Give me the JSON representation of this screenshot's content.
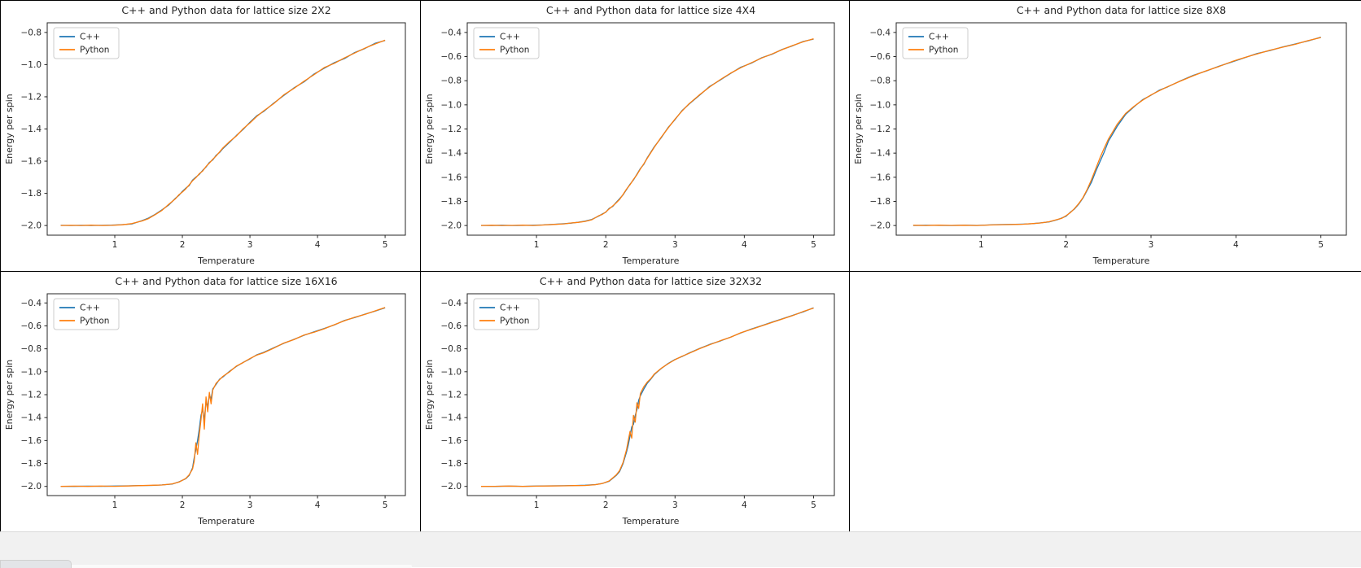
{
  "window": {
    "background": "#ffffff",
    "grid_line_color": "#000000",
    "bottom_bar_color": "#f1f1f1"
  },
  "chart_data": [
    {
      "type": "line",
      "title": "C++ and Python data for lattice size 2X2",
      "xlabel": "Temperature",
      "ylabel": "Energy per spin",
      "legend_position": "upper left",
      "grid": false,
      "xlim": [
        0,
        5.3
      ],
      "ylim": [
        -2.06,
        -0.74
      ],
      "x_ticks": [
        1,
        2,
        3,
        4,
        5
      ],
      "y_ticks": [
        -0.8,
        -1.0,
        -1.2,
        -1.4,
        -1.6,
        -1.8,
        -2.0
      ],
      "x": [
        0.2,
        0.35,
        0.5,
        0.65,
        0.8,
        0.95,
        1.1,
        1.25,
        1.4,
        1.5,
        1.6,
        1.7,
        1.8,
        1.9,
        1.95,
        2.0,
        2.05,
        2.1,
        2.15,
        2.2,
        2.25,
        2.3,
        2.35,
        2.4,
        2.45,
        2.5,
        2.55,
        2.6,
        2.7,
        2.8,
        2.9,
        3.0,
        3.1,
        3.2,
        3.35,
        3.5,
        3.65,
        3.8,
        3.95,
        4.1,
        4.25,
        4.4,
        4.55,
        4.7,
        4.85,
        5.0
      ],
      "series": [
        {
          "name": "C++",
          "color": "#1f77b4",
          "y": [
            -1.999,
            -2.0,
            -1.999,
            -2.0,
            -1.999,
            -1.998,
            -1.995,
            -1.99,
            -1.97,
            -1.954,
            -1.93,
            -1.902,
            -1.872,
            -1.83,
            -1.812,
            -1.788,
            -1.768,
            -1.752,
            -1.718,
            -1.7,
            -1.682,
            -1.658,
            -1.636,
            -1.608,
            -1.592,
            -1.564,
            -1.546,
            -1.522,
            -1.482,
            -1.44,
            -1.402,
            -1.358,
            -1.318,
            -1.292,
            -1.24,
            -1.192,
            -1.145,
            -1.107,
            -1.058,
            -1.022,
            -0.988,
            -0.962,
            -0.925,
            -0.9,
            -0.868,
            -0.85
          ]
        },
        {
          "name": "Python",
          "color": "#ff7f0e",
          "y": [
            -2.0,
            -1.999,
            -2.0,
            -1.998,
            -2.0,
            -1.999,
            -1.996,
            -1.988,
            -1.972,
            -1.957,
            -1.932,
            -1.905,
            -1.868,
            -1.833,
            -1.808,
            -1.792,
            -1.772,
            -1.748,
            -1.722,
            -1.703,
            -1.678,
            -1.662,
            -1.633,
            -1.612,
            -1.588,
            -1.568,
            -1.543,
            -1.518,
            -1.478,
            -1.443,
            -1.398,
            -1.362,
            -1.322,
            -1.288,
            -1.243,
            -1.188,
            -1.148,
            -1.103,
            -1.062,
            -1.018,
            -0.992,
            -0.958,
            -0.928,
            -0.898,
            -0.872,
            -0.848
          ]
        }
      ]
    },
    {
      "type": "line",
      "title": "C++ and Python data for lattice size 4X4",
      "xlabel": "Temperature",
      "ylabel": "Energy per spin",
      "legend_position": "upper left",
      "grid": false,
      "xlim": [
        0,
        5.3
      ],
      "ylim": [
        -2.08,
        -0.32
      ],
      "x_ticks": [
        1,
        2,
        3,
        4,
        5
      ],
      "y_ticks": [
        -0.4,
        -0.6,
        -0.8,
        -1.0,
        -1.2,
        -1.4,
        -1.6,
        -1.8,
        -2.0
      ],
      "x": [
        0.2,
        0.35,
        0.5,
        0.65,
        0.8,
        0.95,
        1.1,
        1.25,
        1.4,
        1.5,
        1.6,
        1.7,
        1.8,
        1.9,
        1.95,
        2.0,
        2.05,
        2.1,
        2.15,
        2.2,
        2.25,
        2.3,
        2.35,
        2.4,
        2.45,
        2.5,
        2.55,
        2.6,
        2.7,
        2.8,
        2.9,
        3.0,
        3.1,
        3.2,
        3.35,
        3.5,
        3.65,
        3.8,
        3.95,
        4.1,
        4.25,
        4.4,
        4.55,
        4.7,
        4.85,
        5.0
      ],
      "series": [
        {
          "name": "C++",
          "color": "#1f77b4",
          "y": [
            -1.999,
            -2.0,
            -1.998,
            -2.0,
            -1.999,
            -1.998,
            -1.995,
            -1.99,
            -1.985,
            -1.98,
            -1.973,
            -1.964,
            -1.949,
            -1.921,
            -1.905,
            -1.89,
            -1.858,
            -1.842,
            -1.808,
            -1.778,
            -1.745,
            -1.702,
            -1.658,
            -1.622,
            -1.575,
            -1.528,
            -1.492,
            -1.438,
            -1.348,
            -1.272,
            -1.188,
            -1.122,
            -1.048,
            -0.995,
            -0.922,
            -0.848,
            -0.795,
            -0.74,
            -0.688,
            -0.655,
            -0.61,
            -0.58,
            -0.54,
            -0.51,
            -0.475,
            -0.455
          ]
        },
        {
          "name": "Python",
          "color": "#ff7f0e",
          "y": [
            -2.0,
            -1.998,
            -2.0,
            -1.999,
            -1.997,
            -2.0,
            -1.996,
            -1.991,
            -1.986,
            -1.979,
            -1.974,
            -1.966,
            -1.952,
            -1.918,
            -1.908,
            -1.888,
            -1.862,
            -1.838,
            -1.812,
            -1.783,
            -1.742,
            -1.698,
            -1.662,
            -1.618,
            -1.578,
            -1.532,
            -1.488,
            -1.442,
            -1.352,
            -1.268,
            -1.192,
            -1.118,
            -1.052,
            -0.992,
            -0.918,
            -0.852,
            -0.792,
            -0.738,
            -0.692,
            -0.652,
            -0.612,
            -0.578,
            -0.542,
            -0.508,
            -0.478,
            -0.452
          ]
        }
      ]
    },
    {
      "type": "line",
      "title": "C++ and Python data for lattice size 8X8",
      "xlabel": "Temperature",
      "ylabel": "Energy per spin",
      "legend_position": "upper left",
      "grid": false,
      "xlim": [
        0,
        5.3
      ],
      "ylim": [
        -2.08,
        -0.32
      ],
      "x_ticks": [
        1,
        2,
        3,
        4,
        5
      ],
      "y_ticks": [
        -0.4,
        -0.6,
        -0.8,
        -1.0,
        -1.2,
        -1.4,
        -1.6,
        -1.8,
        -2.0
      ],
      "x": [
        0.2,
        0.35,
        0.5,
        0.65,
        0.8,
        0.95,
        1.1,
        1.25,
        1.4,
        1.5,
        1.6,
        1.7,
        1.8,
        1.9,
        1.95,
        2.0,
        2.05,
        2.1,
        2.15,
        2.2,
        2.25,
        2.3,
        2.35,
        2.4,
        2.45,
        2.5,
        2.55,
        2.6,
        2.7,
        2.8,
        2.9,
        3.0,
        3.1,
        3.2,
        3.35,
        3.5,
        3.65,
        3.8,
        3.95,
        4.1,
        4.25,
        4.4,
        4.55,
        4.7,
        4.85,
        5.0
      ],
      "series": [
        {
          "name": "C++",
          "color": "#1f77b4",
          "y": [
            -2.0,
            -1.998,
            -1.999,
            -2.0,
            -1.997,
            -1.999,
            -1.995,
            -1.992,
            -1.99,
            -1.988,
            -1.985,
            -1.978,
            -1.97,
            -1.951,
            -1.938,
            -1.922,
            -1.89,
            -1.862,
            -1.822,
            -1.772,
            -1.705,
            -1.64,
            -1.55,
            -1.47,
            -1.39,
            -1.3,
            -1.24,
            -1.18,
            -1.08,
            -1.015,
            -0.958,
            -0.92,
            -0.878,
            -0.85,
            -0.8,
            -0.755,
            -0.72,
            -0.68,
            -0.645,
            -0.61,
            -0.575,
            -0.55,
            -0.52,
            -0.495,
            -0.47,
            -0.44
          ]
        },
        {
          "name": "Python",
          "color": "#ff7f0e",
          "y": [
            -1.998,
            -2.0,
            -1.997,
            -1.999,
            -1.998,
            -2.0,
            -1.996,
            -1.993,
            -1.991,
            -1.989,
            -1.984,
            -1.979,
            -1.969,
            -1.949,
            -1.94,
            -1.918,
            -1.893,
            -1.859,
            -1.818,
            -1.768,
            -1.698,
            -1.618,
            -1.528,
            -1.438,
            -1.358,
            -1.282,
            -1.222,
            -1.162,
            -1.072,
            -1.012,
            -0.962,
            -0.918,
            -0.882,
            -0.848,
            -0.802,
            -0.758,
            -0.718,
            -0.682,
            -0.642,
            -0.608,
            -0.578,
            -0.548,
            -0.522,
            -0.498,
            -0.468,
            -0.442
          ]
        }
      ]
    },
    {
      "type": "line",
      "title": "C++ and Python data for lattice size 16X16",
      "xlabel": "Temperature",
      "ylabel": "Energy per spin",
      "legend_position": "upper left",
      "grid": false,
      "xlim": [
        0,
        5.3
      ],
      "ylim": [
        -2.08,
        -0.32
      ],
      "x_ticks": [
        1,
        2,
        3,
        4,
        5
      ],
      "y_ticks": [
        -0.4,
        -0.6,
        -0.8,
        -1.0,
        -1.2,
        -1.4,
        -1.6,
        -1.8,
        -2.0
      ],
      "x": [
        0.2,
        0.4,
        0.6,
        0.8,
        1.0,
        1.2,
        1.4,
        1.55,
        1.7,
        1.85,
        1.95,
        2.05,
        2.1,
        2.15,
        2.175,
        2.2,
        2.225,
        2.25,
        2.275,
        2.3,
        2.325,
        2.35,
        2.375,
        2.4,
        2.425,
        2.45,
        2.5,
        2.55,
        2.6,
        2.7,
        2.8,
        2.9,
        3.0,
        3.1,
        3.2,
        3.35,
        3.5,
        3.65,
        3.8,
        3.95,
        4.1,
        4.25,
        4.4,
        4.55,
        4.7,
        4.85,
        5.0
      ],
      "series": [
        {
          "name": "C++",
          "color": "#1f77b4",
          "y": [
            -1.999,
            -2.0,
            -1.998,
            -1.999,
            -1.997,
            -1.995,
            -1.992,
            -1.991,
            -1.987,
            -1.98,
            -1.96,
            -1.933,
            -1.905,
            -1.84,
            -1.75,
            -1.68,
            -1.6,
            -1.5,
            -1.38,
            -1.33,
            -1.42,
            -1.26,
            -1.3,
            -1.2,
            -1.24,
            -1.15,
            -1.11,
            -1.065,
            -1.045,
            -0.995,
            -0.953,
            -0.918,
            -0.888,
            -0.852,
            -0.832,
            -0.792,
            -0.752,
            -0.718,
            -0.682,
            -0.652,
            -0.622,
            -0.592,
            -0.552,
            -0.528,
            -0.498,
            -0.472,
            -0.442
          ]
        },
        {
          "name": "Python",
          "color": "#ff7f0e",
          "y": [
            -2.0,
            -1.998,
            -2.0,
            -1.997,
            -1.999,
            -1.996,
            -1.993,
            -1.99,
            -1.988,
            -1.978,
            -1.962,
            -1.93,
            -1.9,
            -1.85,
            -1.78,
            -1.62,
            -1.72,
            -1.55,
            -1.42,
            -1.28,
            -1.5,
            -1.22,
            -1.35,
            -1.18,
            -1.28,
            -1.16,
            -1.1,
            -1.07,
            -1.04,
            -1.0,
            -0.95,
            -0.92,
            -0.885,
            -0.855,
            -0.835,
            -0.795,
            -0.75,
            -0.72,
            -0.68,
            -0.655,
            -0.625,
            -0.59,
            -0.555,
            -0.525,
            -0.5,
            -0.47,
            -0.44
          ]
        }
      ]
    },
    {
      "type": "line",
      "title": "C++ and Python data for lattice size 32X32",
      "xlabel": "Temperature",
      "ylabel": "Energy per spin",
      "legend_position": "upper left",
      "grid": false,
      "xlim": [
        0,
        5.3
      ],
      "ylim": [
        -2.08,
        -0.32
      ],
      "x_ticks": [
        1,
        2,
        3,
        4,
        5
      ],
      "y_ticks": [
        -0.4,
        -0.6,
        -0.8,
        -1.0,
        -1.2,
        -1.4,
        -1.6,
        -1.8,
        -2.0
      ],
      "x": [
        0.2,
        0.4,
        0.6,
        0.8,
        1.0,
        1.2,
        1.4,
        1.55,
        1.7,
        1.85,
        1.95,
        2.05,
        2.15,
        2.2,
        2.25,
        2.3,
        2.325,
        2.35,
        2.375,
        2.4,
        2.425,
        2.45,
        2.475,
        2.5,
        2.55,
        2.6,
        2.65,
        2.7,
        2.8,
        2.9,
        3.0,
        3.1,
        3.2,
        3.35,
        3.5,
        3.65,
        3.8,
        3.95,
        4.1,
        4.25,
        4.4,
        4.55,
        4.7,
        4.85,
        5.0
      ],
      "series": [
        {
          "name": "C++",
          "color": "#1f77b4",
          "y": [
            -1.999,
            -2.0,
            -1.998,
            -1.999,
            -1.997,
            -1.995,
            -1.994,
            -1.992,
            -1.99,
            -1.984,
            -1.974,
            -1.955,
            -1.905,
            -1.87,
            -1.8,
            -1.7,
            -1.64,
            -1.56,
            -1.48,
            -1.46,
            -1.38,
            -1.33,
            -1.25,
            -1.21,
            -1.15,
            -1.1,
            -1.065,
            -1.025,
            -0.972,
            -0.928,
            -0.893,
            -0.868,
            -0.838,
            -0.798,
            -0.762,
            -0.732,
            -0.698,
            -0.662,
            -0.628,
            -0.598,
            -0.568,
            -0.538,
            -0.508,
            -0.478,
            -0.442
          ]
        },
        {
          "name": "Python",
          "color": "#ff7f0e",
          "y": [
            -2.0,
            -1.999,
            -1.997,
            -2.0,
            -1.998,
            -1.996,
            -1.995,
            -1.993,
            -1.992,
            -1.985,
            -1.975,
            -1.952,
            -1.9,
            -1.862,
            -1.79,
            -1.68,
            -1.6,
            -1.52,
            -1.58,
            -1.38,
            -1.44,
            -1.27,
            -1.32,
            -1.19,
            -1.13,
            -1.09,
            -1.06,
            -1.02,
            -0.97,
            -0.93,
            -0.895,
            -0.865,
            -0.84,
            -0.8,
            -0.765,
            -0.73,
            -0.7,
            -0.66,
            -0.63,
            -0.6,
            -0.57,
            -0.54,
            -0.51,
            -0.475,
            -0.445
          ]
        }
      ]
    }
  ]
}
